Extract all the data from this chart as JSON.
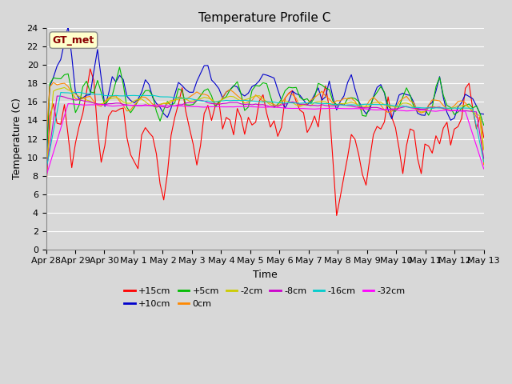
{
  "title": "Temperature Profile C",
  "xlabel": "Time",
  "ylabel": "Temperature (C)",
  "ylim": [
    0,
    24
  ],
  "yticks": [
    0,
    2,
    4,
    6,
    8,
    10,
    12,
    14,
    16,
    18,
    20,
    22,
    24
  ],
  "n_days": 15,
  "xtick_labels": [
    "Apr 28",
    "Apr 29",
    "Apr 30",
    "May 1",
    "May 2",
    "May 3",
    "May 4",
    "May 5",
    "May 6",
    "May 7",
    "May 8",
    "May 9",
    "May 10",
    "May 11",
    "May 12",
    "May 13"
  ],
  "series_order": [
    "+15cm",
    "+10cm",
    "+5cm",
    "0cm",
    "-2cm",
    "-8cm",
    "-16cm",
    "-32cm"
  ],
  "series": {
    "+15cm": {
      "color": "#ff0000",
      "lw": 0.8
    },
    "+10cm": {
      "color": "#0000cc",
      "lw": 0.8
    },
    "+5cm": {
      "color": "#00bb00",
      "lw": 0.8
    },
    "0cm": {
      "color": "#ff8800",
      "lw": 0.8
    },
    "-2cm": {
      "color": "#cccc00",
      "lw": 0.8
    },
    "-8cm": {
      "color": "#cc00cc",
      "lw": 0.8
    },
    "-16cm": {
      "color": "#00cccc",
      "lw": 0.8
    },
    "-32cm": {
      "color": "#ff00ff",
      "lw": 0.8
    }
  },
  "legend_box_color": "#ffffcc",
  "legend_box_text": "GT_met",
  "legend_box_text_color": "#880000",
  "bg_color": "#d8d8d8",
  "plot_bg_color": "#d8d8d8",
  "grid_color": "#ffffff",
  "title_fontsize": 11,
  "axis_fontsize": 9,
  "tick_fontsize": 8
}
